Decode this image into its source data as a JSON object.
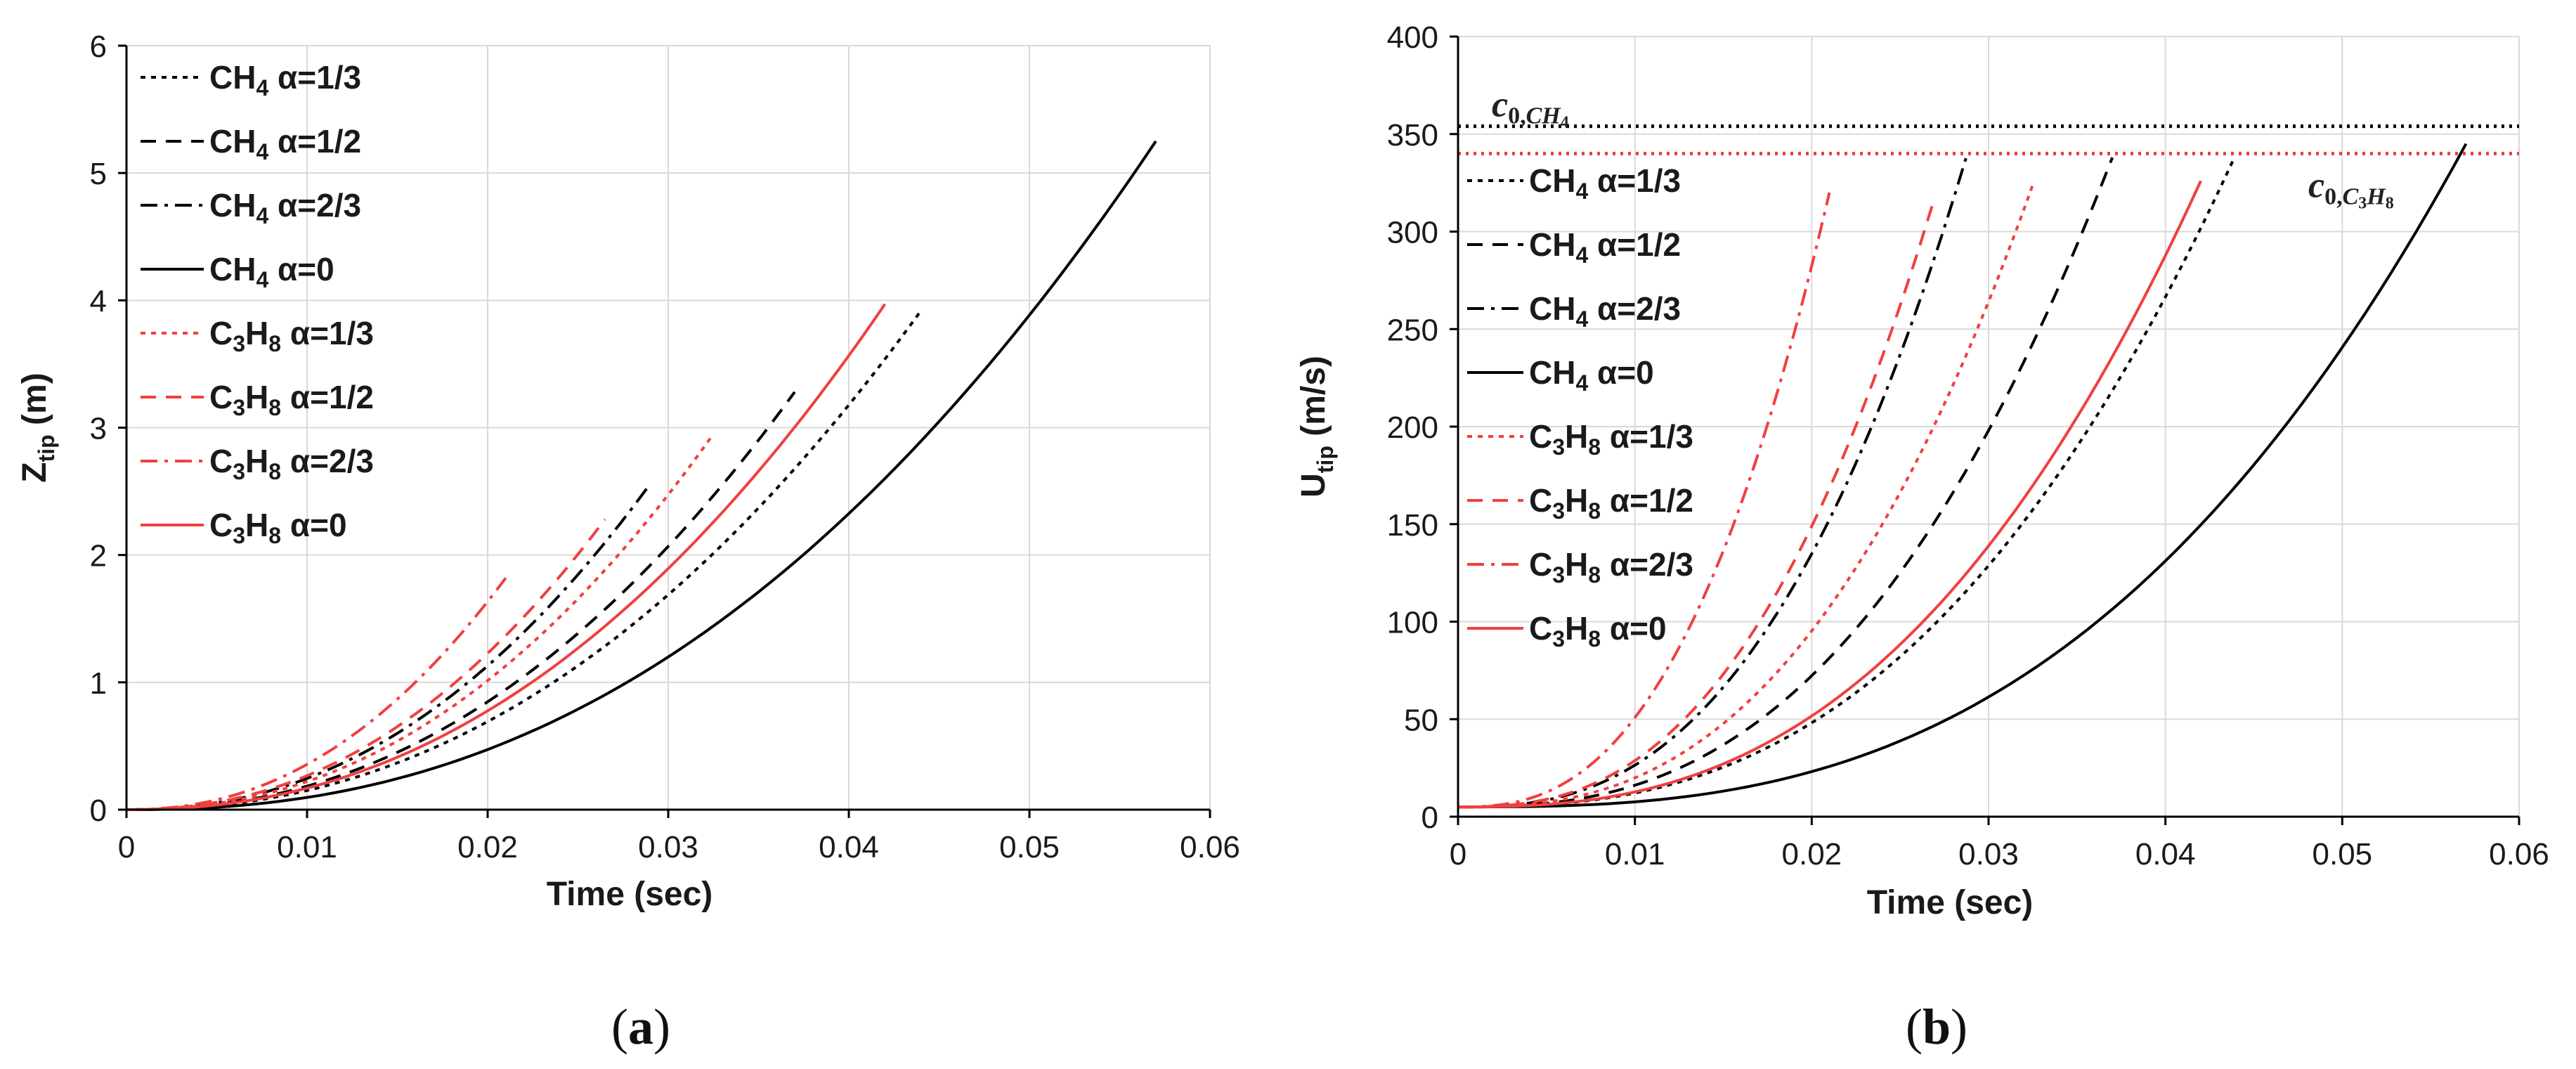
{
  "chart_data": [
    {
      "type": "line",
      "panel_label": "a",
      "xlabel": "Time (sec)",
      "ylabel": "Z",
      "ylabel_sub": "tip",
      "ylabel_unit": " (m)",
      "xlim": [
        0,
        0.06
      ],
      "ylim": [
        0,
        6
      ],
      "xticks": [
        0,
        0.01,
        0.02,
        0.03,
        0.04,
        0.05,
        0.06
      ],
      "xtick_labels": [
        "0",
        "0.01",
        "0.02",
        "0.03",
        "0.04",
        "0.05",
        "0.06"
      ],
      "yticks": [
        0,
        1,
        2,
        3,
        4,
        5,
        6
      ],
      "ytick_labels": [
        "0",
        "1",
        "2",
        "3",
        "4",
        "5",
        "6"
      ],
      "grid": true,
      "legend_position": "top-left",
      "series": [
        {
          "id": "ch4_13",
          "fuel_pre": "CH",
          "fuel_n1": "4",
          "fuel_mid": "",
          "fuel_n2": "",
          "alpha": " α=1/3",
          "color": "#000000",
          "dash": "dot",
          "t_end": 0.044,
          "y_end": 3.92,
          "power": 2.2
        },
        {
          "id": "ch4_12",
          "fuel_pre": "CH",
          "fuel_n1": "4",
          "fuel_mid": "",
          "fuel_n2": "",
          "alpha": " α=1/2",
          "color": "#000000",
          "dash": "dash",
          "t_end": 0.037,
          "y_end": 3.28,
          "power": 2.2
        },
        {
          "id": "ch4_23",
          "fuel_pre": "CH",
          "fuel_n1": "4",
          "fuel_mid": "",
          "fuel_n2": "",
          "alpha": " α=2/3",
          "color": "#000000",
          "dash": "dashdot",
          "t_end": 0.0288,
          "y_end": 2.52,
          "power": 2.2
        },
        {
          "id": "ch4_0",
          "fuel_pre": "CH",
          "fuel_n1": "4",
          "fuel_mid": "",
          "fuel_n2": "",
          "alpha": " α=0",
          "color": "#000000",
          "dash": "solid",
          "t_end": 0.057,
          "y_end": 5.25,
          "power": 2.3
        },
        {
          "id": "c3h8_13",
          "fuel_pre": "C",
          "fuel_n1": "3",
          "fuel_mid": "H",
          "fuel_n2": "8",
          "alpha": " α=1/3",
          "color": "#f04040",
          "dash": "dot",
          "t_end": 0.0325,
          "y_end": 2.95,
          "power": 2.2
        },
        {
          "id": "c3h8_12",
          "fuel_pre": "C",
          "fuel_n1": "3",
          "fuel_mid": "H",
          "fuel_n2": "8",
          "alpha": " α=1/2",
          "color": "#f04040",
          "dash": "dash",
          "t_end": 0.0265,
          "y_end": 2.28,
          "power": 2.2
        },
        {
          "id": "c3h8_23",
          "fuel_pre": "C",
          "fuel_n1": "3",
          "fuel_mid": "H",
          "fuel_n2": "8",
          "alpha": " α=2/3",
          "color": "#f04040",
          "dash": "dashdot",
          "t_end": 0.021,
          "y_end": 1.82,
          "power": 2.2
        },
        {
          "id": "c3h8_0",
          "fuel_pre": "C",
          "fuel_n1": "3",
          "fuel_mid": "H",
          "fuel_n2": "8",
          "alpha": " α=0",
          "color": "#f04040",
          "dash": "solid",
          "t_end": 0.042,
          "y_end": 3.97,
          "power": 2.2
        }
      ]
    },
    {
      "type": "line",
      "panel_label": "b",
      "xlabel": "Time (sec)",
      "ylabel": "U",
      "ylabel_sub": "tip",
      "ylabel_unit": " (m/s)",
      "xlim": [
        0,
        0.06
      ],
      "ylim": [
        0,
        400
      ],
      "xticks": [
        0,
        0.01,
        0.02,
        0.03,
        0.04,
        0.05,
        0.06
      ],
      "xtick_labels": [
        "0",
        "0.01",
        "0.02",
        "0.03",
        "0.04",
        "0.05",
        "0.06"
      ],
      "yticks": [
        0,
        50,
        100,
        150,
        200,
        250,
        300,
        350,
        400
      ],
      "ytick_labels": [
        "0",
        "50",
        "100",
        "150",
        "200",
        "250",
        "300",
        "350",
        "400"
      ],
      "grid": true,
      "legend_position": "upper-left",
      "reference_lines": [
        {
          "id": "c0_ch4",
          "value": 354,
          "color": "#000000",
          "label_main": "c",
          "label_sub_a": "0,",
          "label_sub_b": "CH",
          "label_sub_c": "4",
          "label_position": "top-left"
        },
        {
          "id": "c0_c3h8",
          "value": 340,
          "color": "#f04040",
          "label_main": "c",
          "label_sub_a": "0,",
          "label_sub_b": "C",
          "label_sub_c": "3",
          "label_sub_d": "H",
          "label_sub_e": "8",
          "label_position": "right"
        }
      ],
      "series": [
        {
          "id": "ch4_13",
          "fuel_pre": "CH",
          "fuel_n1": "4",
          "fuel_mid": "",
          "fuel_n2": "",
          "alpha": " α=1/3",
          "color": "#000000",
          "dash": "dot",
          "t_end": 0.0438,
          "y_end": 336,
          "y0": 5,
          "power": 2.6
        },
        {
          "id": "ch4_12",
          "fuel_pre": "CH",
          "fuel_n1": "4",
          "fuel_mid": "",
          "fuel_n2": "",
          "alpha": " α=1/2",
          "color": "#000000",
          "dash": "dash",
          "t_end": 0.037,
          "y_end": 338,
          "y0": 5,
          "power": 2.6
        },
        {
          "id": "ch4_23",
          "fuel_pre": "CH",
          "fuel_n1": "4",
          "fuel_mid": "",
          "fuel_n2": "",
          "alpha": " α=2/3",
          "color": "#000000",
          "dash": "dashdot",
          "t_end": 0.0288,
          "y_end": 340,
          "y0": 5,
          "power": 2.6
        },
        {
          "id": "ch4_0",
          "fuel_pre": "CH",
          "fuel_n1": "4",
          "fuel_mid": "",
          "fuel_n2": "",
          "alpha": " α=0",
          "color": "#000000",
          "dash": "solid",
          "t_end": 0.057,
          "y_end": 345,
          "y0": 5,
          "power": 2.8
        },
        {
          "id": "c3h8_13",
          "fuel_pre": "C",
          "fuel_n1": "3",
          "fuel_mid": "H",
          "fuel_n2": "8",
          "alpha": " α=1/3",
          "color": "#f04040",
          "dash": "dot",
          "t_end": 0.0325,
          "y_end": 324,
          "y0": 5,
          "power": 2.6
        },
        {
          "id": "c3h8_12",
          "fuel_pre": "C",
          "fuel_n1": "3",
          "fuel_mid": "H",
          "fuel_n2": "8",
          "alpha": " α=1/2",
          "color": "#f04040",
          "dash": "dash",
          "t_end": 0.0268,
          "y_end": 313,
          "y0": 5,
          "power": 2.6
        },
        {
          "id": "c3h8_23",
          "fuel_pre": "C",
          "fuel_n1": "3",
          "fuel_mid": "H",
          "fuel_n2": "8",
          "alpha": " α=2/3",
          "color": "#f04040",
          "dash": "dashdot",
          "t_end": 0.021,
          "y_end": 320,
          "y0": 5,
          "power": 2.6
        },
        {
          "id": "c3h8_0",
          "fuel_pre": "C",
          "fuel_n1": "3",
          "fuel_mid": "H",
          "fuel_n2": "8",
          "alpha": " α=0",
          "color": "#f04040",
          "dash": "solid",
          "t_end": 0.042,
          "y_end": 326,
          "y0": 5,
          "power": 2.6
        }
      ]
    }
  ]
}
